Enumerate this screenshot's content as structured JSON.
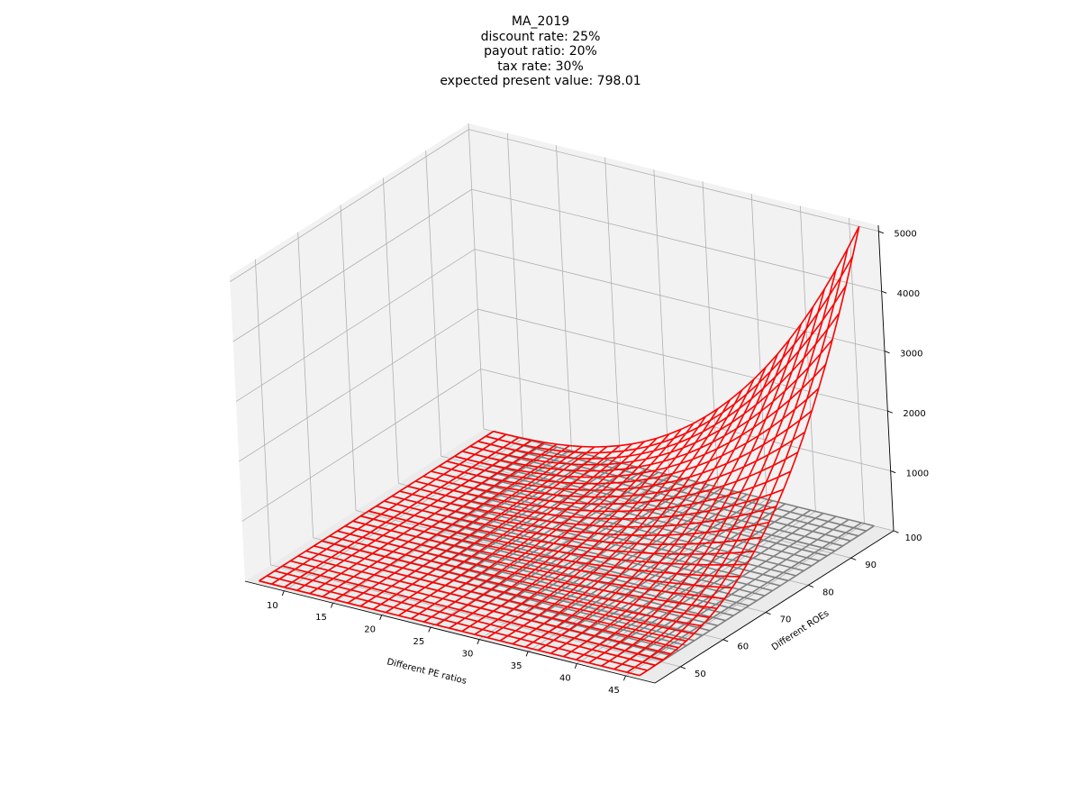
{
  "figure": {
    "title_lines": [
      "MA_2019",
      "discount rate: 25%",
      "payout ratio: 20%",
      "tax rate: 30%",
      "expected present value: 798.01"
    ]
  },
  "chart_data": {
    "type": "surface",
    "projection": "3d",
    "xlabel": "Different PE ratios",
    "ylabel": "Different ROEs",
    "zlabel": "",
    "x_ticks": [
      10,
      15,
      20,
      25,
      30,
      35,
      40,
      45
    ],
    "y_ticks": [
      50,
      60,
      70,
      80,
      90,
      100
    ],
    "z_ticks": [
      1000,
      2000,
      3000,
      4000,
      5000
    ],
    "xlim": [
      6,
      48
    ],
    "ylim": [
      44,
      100
    ],
    "zlim": [
      0,
      5100
    ],
    "grid": true,
    "pane_color": "#f2f2f2",
    "series": [
      {
        "style": "wireframe",
        "color": "#ff0000",
        "x_range": [
          7,
          46
        ],
        "y_range": [
          45,
          100
        ],
        "corner_values": {
          "x_min_y_min": 0,
          "x_max_y_min": 0,
          "x_min_y_max": 0,
          "x_max_y_max": 5000
        }
      },
      {
        "style": "wireframe",
        "color": "#808080",
        "x_range": [
          7,
          46
        ],
        "y_range": [
          45,
          100
        ],
        "z_value": 0
      }
    ]
  }
}
